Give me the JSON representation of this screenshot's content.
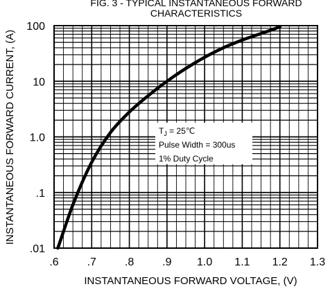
{
  "chart_data": {
    "type": "line",
    "title_line1": "FIG. 3 - TYPICAL INSTANTANEOUS FORWARD",
    "title_line2": "CHARACTERISTICS",
    "xlabel": "INSTANTANEOUS FORWARD VOLTAGE, (V)",
    "ylabel": "INSTANTANEOUS FORWARD CURRENT, (A)",
    "xlim": [
      0.6,
      1.3
    ],
    "ylim": [
      0.01,
      100
    ],
    "yscale": "log",
    "grid": true,
    "x_tick_values": [
      0.6,
      0.7,
      0.8,
      0.9,
      1.0,
      1.1,
      1.2,
      1.3
    ],
    "x_tick_labels": [
      ".6",
      ".7",
      ".8",
      ".9",
      "1.0",
      "1.1",
      "1.2",
      "1.3"
    ],
    "y_tick_values": [
      0.01,
      0.1,
      1,
      10,
      100
    ],
    "y_tick_labels": [
      ".01",
      ".1",
      "1.0",
      "10",
      "100"
    ],
    "series": [
      {
        "x": [
          0.61,
          0.65,
          0.7,
          0.75,
          0.8,
          0.85,
          0.9,
          0.95,
          1.0,
          1.05,
          1.1,
          1.15,
          1.2
        ],
        "y": [
          0.01,
          0.06,
          0.35,
          1.2,
          2.8,
          5.5,
          10,
          17,
          27,
          40,
          55,
          72,
          95
        ]
      }
    ],
    "annotation": {
      "tj_main": "T",
      "tj_sub": "J",
      "tj_rest": " = 25℃",
      "pulse": "Pulse Width = 300us",
      "duty": "1% Duty Cycle"
    }
  }
}
